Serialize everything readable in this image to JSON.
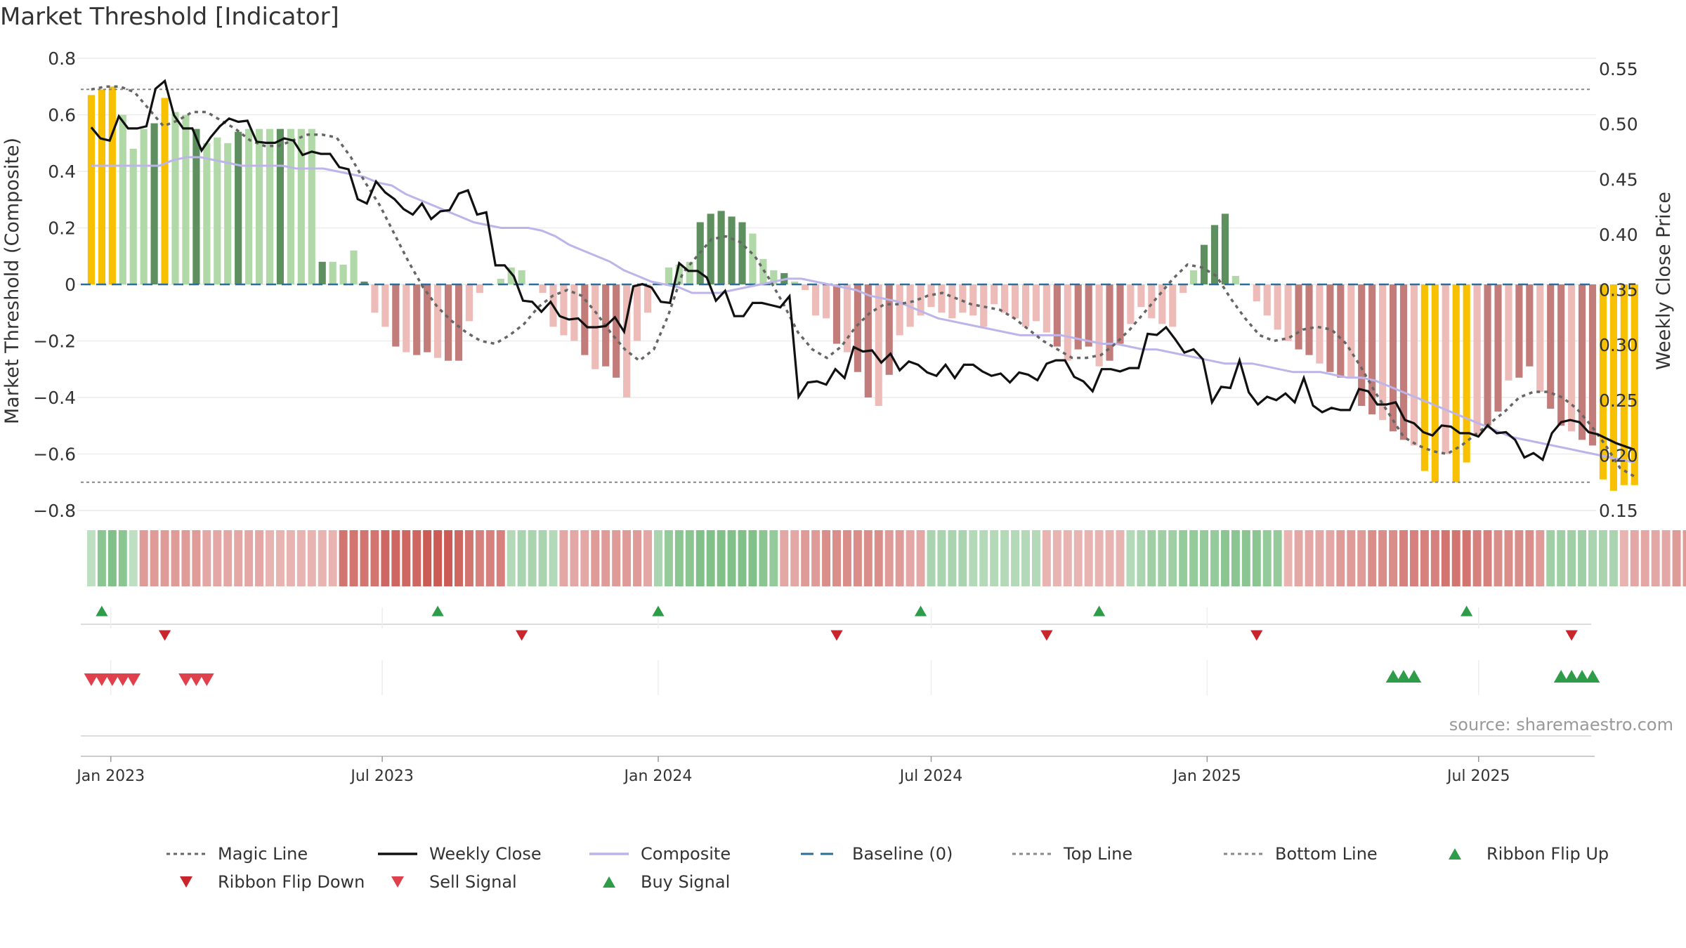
{
  "chart_data": {
    "type": "bar",
    "title": "Market Threshold [Indicator]",
    "ylabel": "Market Threshold (Composite)",
    "y2label": "Weekly Close Price",
    "ylim": [
      -0.8,
      0.8
    ],
    "y2lim": [
      0.15,
      0.55
    ],
    "y_ticks": [
      0.8,
      0.6,
      0.4,
      0.2,
      0,
      -0.2,
      -0.4,
      -0.6,
      -0.8
    ],
    "y_tick_labels": [
      "0.8",
      "0.6",
      "0.4",
      "0.2",
      "0",
      "−0.2",
      "−0.4",
      "−0.6",
      "−0.8"
    ],
    "y2_ticks": [
      0.55,
      0.5,
      0.45,
      0.4,
      0.35,
      0.3,
      0.25,
      0.2,
      0.15
    ],
    "y2_tick_labels": [
      "0.55",
      "0.50",
      "0.45",
      "0.40",
      "0.35",
      "0.30",
      "0.25",
      "0.20",
      "0.15"
    ],
    "x_range": [
      "2022-12-12",
      "2025-09-15"
    ],
    "x_ticks": [
      "2023-01-01",
      "2023-07-01",
      "2024-01-01",
      "2024-07-01",
      "2025-01-01",
      "2025-07-01"
    ],
    "x_tick_labels": [
      "Jan 2023",
      "Jul 2023",
      "Jan 2024",
      "Jul 2024",
      "Jan 2025",
      "Jul 2025"
    ],
    "start_week": "2022-12-19",
    "colors": {
      "strong_up": "#5e8f5e",
      "up": "#b1d9a8",
      "down": "#c27d7a",
      "weak_down": "#edbcb8",
      "extreme": "#f7c000",
      "magic_line": "#666666",
      "weekly_close": "#111111",
      "composite": "#bdb4ea",
      "baseline": "#2b6f98",
      "top_line": "#888888",
      "bottom_line": "#888888",
      "flip_up": "#2e9c48",
      "flip_down": "#c9252c",
      "sell": "#e0404c",
      "buy": "#2e9c48"
    },
    "lines": {
      "top": 0.69,
      "bottom": -0.7,
      "baseline": 0
    },
    "bars": [
      0.67,
      0.69,
      0.7,
      0.6,
      0.48,
      0.55,
      0.57,
      0.66,
      0.61,
      0.6,
      0.55,
      0.5,
      0.52,
      0.5,
      0.54,
      0.55,
      0.55,
      0.55,
      0.55,
      0.55,
      0.55,
      0.55,
      0.08,
      0.08,
      0.07,
      0.12,
      0.01,
      -0.1,
      -0.15,
      -0.22,
      -0.24,
      -0.25,
      -0.24,
      -0.26,
      -0.27,
      -0.27,
      -0.13,
      -0.03,
      0,
      0.02,
      0.06,
      0.05,
      0,
      -0.03,
      -0.15,
      -0.18,
      -0.2,
      -0.25,
      -0.3,
      -0.29,
      -0.33,
      -0.4,
      -0.2,
      -0.1,
      0,
      0.06,
      0.07,
      0.08,
      0.22,
      0.25,
      0.26,
      0.24,
      0.22,
      0.18,
      0.09,
      0.05,
      0.04,
      0.01,
      -0.02,
      -0.11,
      -0.12,
      -0.21,
      -0.24,
      -0.31,
      -0.4,
      -0.43,
      -0.32,
      -0.18,
      -0.15,
      -0.11,
      -0.08,
      -0.1,
      -0.12,
      -0.1,
      -0.11,
      -0.15,
      -0.07,
      -0.1,
      -0.12,
      -0.15,
      -0.13,
      -0.17,
      -0.22,
      -0.27,
      -0.23,
      -0.22,
      -0.29,
      -0.27,
      -0.21,
      -0.14,
      -0.08,
      -0.12,
      -0.14,
      -0.15,
      -0.03,
      0.05,
      0.14,
      0.21,
      0.25,
      0.03,
      0,
      -0.06,
      -0.11,
      -0.16,
      -0.2,
      -0.23,
      -0.25,
      -0.28,
      -0.31,
      -0.33,
      -0.33,
      -0.43,
      -0.46,
      -0.48,
      -0.52,
      -0.55,
      -0.57,
      -0.66,
      -0.7,
      -0.6,
      -0.7,
      -0.63,
      -0.53,
      -0.5,
      -0.45,
      -0.34,
      -0.33,
      -0.29,
      -0.38,
      -0.44,
      -0.5,
      -0.52,
      -0.55,
      -0.57,
      -0.69,
      -0.73,
      -0.71,
      -0.71
    ],
    "weekly_close": [
      0.497,
      0.487,
      0.485,
      0.507,
      0.496,
      0.496,
      0.498,
      0.532,
      0.539,
      0.508,
      0.496,
      0.496,
      0.476,
      0.488,
      0.498,
      0.505,
      0.502,
      0.503,
      0.484,
      0.483,
      0.483,
      0.487,
      0.485,
      0.472,
      0.475,
      0.473,
      0.473,
      0.461,
      0.459,
      0.432,
      0.428,
      0.448,
      0.438,
      0.432,
      0.423,
      0.418,
      0.428,
      0.414,
      0.421,
      0.422,
      0.437,
      0.44,
      0.418,
      0.42,
      0.372,
      0.372,
      0.362,
      0.34,
      0.339,
      0.33,
      0.339,
      0.326,
      0.323,
      0.324,
      0.316,
      0.316,
      0.317,
      0.325,
      0.312,
      0.353,
      0.355,
      0.352,
      0.339,
      0.338,
      0.374,
      0.367,
      0.367,
      0.361,
      0.34,
      0.349,
      0.326,
      0.326,
      0.338,
      0.338,
      0.336,
      0.334,
      0.344,
      0.253,
      0.266,
      0.267,
      0.264,
      0.278,
      0.27,
      0.298,
      0.294,
      0.295,
      0.284,
      0.292,
      0.277,
      0.285,
      0.282,
      0.275,
      0.272,
      0.282,
      0.27,
      0.282,
      0.282,
      0.276,
      0.272,
      0.274,
      0.266,
      0.275,
      0.273,
      0.268,
      0.283,
      0.286,
      0.286,
      0.271,
      0.267,
      0.258,
      0.278,
      0.278,
      0.276,
      0.279,
      0.279,
      0.31,
      0.309,
      0.316,
      0.305,
      0.293,
      0.296,
      0.287,
      0.248,
      0.262,
      0.261,
      0.286,
      0.257,
      0.246,
      0.253,
      0.25,
      0.256,
      0.248,
      0.27,
      0.245,
      0.239,
      0.243,
      0.241,
      0.241,
      0.26,
      0.258,
      0.246,
      0.246,
      0.248,
      0.232,
      0.229,
      0.221,
      0.218,
      0.227,
      0.226,
      0.22,
      0.22,
      0.217,
      0.227,
      0.22,
      0.221,
      0.214,
      0.198,
      0.202,
      0.196,
      0.22,
      0.23,
      0.232,
      0.23,
      0.221,
      0.219,
      0.215,
      0.211,
      0.208,
      0.205
    ],
    "composite": [
      0.42,
      0.42,
      0.42,
      0.42,
      0.42,
      0.42,
      0.44,
      0.45,
      0.45,
      0.44,
      0.43,
      0.42,
      0.42,
      0.42,
      0.42,
      0.41,
      0.41,
      0.41,
      0.4,
      0.39,
      0.38,
      0.36,
      0.35,
      0.32,
      0.3,
      0.28,
      0.26,
      0.24,
      0.22,
      0.21,
      0.2,
      0.2,
      0.2,
      0.19,
      0.17,
      0.14,
      0.12,
      0.1,
      0.08,
      0.05,
      0.03,
      0.01,
      0.0,
      -0.01,
      -0.03,
      -0.03,
      -0.03,
      -0.02,
      -0.01,
      0.0,
      0.01,
      0.02,
      0.02,
      0.01,
      0.0,
      -0.01,
      -0.02,
      -0.04,
      -0.05,
      -0.06,
      -0.08,
      -0.1,
      -0.12,
      -0.13,
      -0.14,
      -0.15,
      -0.16,
      -0.17,
      -0.18,
      -0.18,
      -0.18,
      -0.18,
      -0.19,
      -0.2,
      -0.21,
      -0.21,
      -0.22,
      -0.23,
      -0.23,
      -0.24,
      -0.25,
      -0.26,
      -0.27,
      -0.28,
      -0.28,
      -0.28,
      -0.29,
      -0.3,
      -0.31,
      -0.31,
      -0.31,
      -0.32,
      -0.33,
      -0.33,
      -0.34,
      -0.36,
      -0.38,
      -0.4,
      -0.42,
      -0.44,
      -0.46,
      -0.48,
      -0.5,
      -0.52,
      -0.54,
      -0.55,
      -0.56,
      -0.57,
      -0.58,
      -0.59,
      -0.6,
      -0.61,
      -0.62,
      -0.63
    ],
    "magic_line": [
      0.69,
      0.7,
      0.7,
      0.68,
      0.62,
      0.56,
      0.58,
      0.61,
      0.61,
      0.58,
      0.55,
      0.51,
      0.49,
      0.49,
      0.51,
      0.53,
      0.53,
      0.52,
      0.45,
      0.36,
      0.28,
      0.18,
      0.08,
      -0.01,
      -0.08,
      -0.13,
      -0.17,
      -0.2,
      -0.21,
      -0.18,
      -0.14,
      -0.08,
      -0.04,
      -0.02,
      -0.04,
      -0.1,
      -0.17,
      -0.23,
      -0.27,
      -0.23,
      -0.11,
      0.04,
      0.1,
      0.16,
      0.17,
      0.15,
      0.1,
      0.02,
      -0.07,
      -0.17,
      -0.23,
      -0.26,
      -0.22,
      -0.15,
      -0.1,
      -0.07,
      -0.07,
      -0.06,
      -0.04,
      -0.03,
      -0.05,
      -0.07,
      -0.08,
      -0.09,
      -0.12,
      -0.16,
      -0.2,
      -0.23,
      -0.26,
      -0.26,
      -0.25,
      -0.21,
      -0.16,
      -0.1,
      -0.04,
      0.02,
      0.07,
      0.06,
      0.03,
      -0.05,
      -0.12,
      -0.18,
      -0.2,
      -0.19,
      -0.16,
      -0.15,
      -0.16,
      -0.21,
      -0.29,
      -0.38,
      -0.46,
      -0.54,
      -0.57,
      -0.59,
      -0.6,
      -0.57,
      -0.53,
      -0.49,
      -0.45,
      -0.4,
      -0.38,
      -0.38,
      -0.4,
      -0.44,
      -0.5,
      -0.57,
      -0.65,
      -0.68
    ]
  },
  "ribbon": [
    0.2,
    0.7,
    0.8,
    0.7,
    0.2,
    -0.5,
    -0.5,
    -0.5,
    -0.5,
    -0.5,
    -0.5,
    -0.4,
    -0.4,
    -0.4,
    -0.4,
    -0.4,
    -0.4,
    -0.3,
    -0.3,
    -0.3,
    -0.3,
    -0.3,
    -0.3,
    -0.3,
    -0.8,
    -0.8,
    -0.8,
    -0.8,
    -0.9,
    -0.9,
    -0.9,
    -0.9,
    -1.0,
    -1.0,
    -1.0,
    -0.9,
    -0.8,
    -0.7,
    -0.7,
    -0.7,
    0.3,
    0.4,
    0.4,
    0.4,
    0.3,
    -0.4,
    -0.4,
    -0.4,
    -0.5,
    -0.5,
    -0.5,
    -0.5,
    -0.5,
    -0.4,
    0.4,
    0.6,
    0.7,
    0.7,
    0.8,
    0.8,
    0.8,
    0.8,
    0.8,
    0.8,
    0.7,
    0.6,
    -0.4,
    -0.4,
    -0.5,
    -0.5,
    -0.6,
    -0.6,
    -0.6,
    -0.6,
    -0.6,
    -0.6,
    -0.5,
    -0.5,
    -0.4,
    -0.4,
    0.4,
    0.4,
    0.4,
    0.4,
    0.3,
    0.3,
    0.3,
    0.3,
    0.3,
    0.3,
    0.3,
    -0.3,
    -0.3,
    -0.3,
    -0.3,
    -0.3,
    -0.3,
    -0.3,
    -0.3,
    0.3,
    0.4,
    0.5,
    0.5,
    0.5,
    0.6,
    0.6,
    0.6,
    0.6,
    0.7,
    0.7,
    0.7,
    0.7,
    0.6,
    0.6,
    -0.3,
    -0.4,
    -0.4,
    -0.4,
    -0.4,
    -0.5,
    -0.5,
    -0.5,
    -0.6,
    -0.6,
    -0.6,
    -0.7,
    -0.7,
    -0.7,
    -0.7,
    -0.8,
    -0.8,
    -0.8,
    -0.7,
    -0.7,
    -0.6,
    -0.6,
    -0.6,
    -0.6,
    -0.5,
    0.5,
    0.5,
    0.5,
    0.5,
    0.4,
    0.4,
    0.4,
    -0.3,
    -0.4,
    -0.4,
    -0.4,
    -0.4,
    -0.5,
    -0.5
  ],
  "signals": {
    "buy_dates": [
      "2022-12-26",
      "2023-08-07",
      "2024-01-01",
      "2024-06-24",
      "2024-10-21",
      "2025-06-23"
    ],
    "sell_dates": [
      "2023-02-06",
      "2023-10-02",
      "2024-04-29",
      "2024-09-16",
      "2025-02-03",
      "2025-09-01"
    ],
    "flip_down_dates": [
      "2022-12-19",
      "2022-12-26",
      "2023-01-02",
      "2023-01-09",
      "2023-01-16",
      "2023-02-20",
      "2023-02-27",
      "2023-03-06"
    ],
    "flip_up_dates": [
      "2025-05-05",
      "2025-05-12",
      "2025-05-19",
      "2025-08-25",
      "2025-09-01",
      "2025-09-08",
      "2025-09-15"
    ]
  },
  "source_text": "source: sharemaestro.com",
  "legend": [
    {
      "label": "Magic Line",
      "kind": "dotted",
      "color": "#666666"
    },
    {
      "label": "Weekly Close",
      "kind": "solid",
      "color": "#111111"
    },
    {
      "label": "Composite",
      "kind": "solid",
      "color": "#bdb4ea"
    },
    {
      "label": "Baseline (0)",
      "kind": "dashed",
      "color": "#2b6f98"
    },
    {
      "label": "Top Line",
      "kind": "dotted",
      "color": "#888888"
    },
    {
      "label": "Bottom Line",
      "kind": "dotted",
      "color": "#888888"
    },
    {
      "label": "Ribbon Flip Up",
      "kind": "triangle-up",
      "color": "#2e9c48"
    },
    {
      "label": "Ribbon Flip Down",
      "kind": "triangle-down",
      "color": "#c9252c"
    },
    {
      "label": "Sell Signal",
      "kind": "triangle-down",
      "color": "#e0404c"
    },
    {
      "label": "Buy Signal",
      "kind": "triangle-up",
      "color": "#2e9c48"
    }
  ]
}
